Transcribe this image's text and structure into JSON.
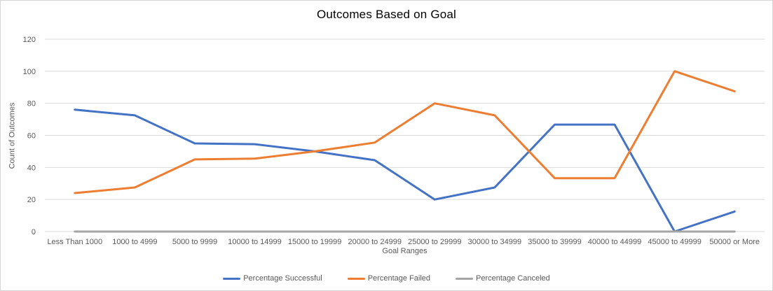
{
  "chart_data": {
    "type": "line",
    "title": "Outcomes Based on Goal",
    "xlabel": "Goal Ranges",
    "ylabel": "Count of Outcomes",
    "ylim": [
      0,
      120
    ],
    "yticks": [
      0,
      20,
      40,
      60,
      80,
      100,
      120
    ],
    "grid": true,
    "legend_position": "bottom",
    "categories": [
      "Less Than 1000",
      "1000 to 4999",
      "5000 to 9999",
      "10000 to 14999",
      "15000 to 19999",
      "20000 to 24999",
      "25000 to 29999",
      "30000 to 34999",
      "35000 to 39999",
      "40000 to 44999",
      "45000 to 49999",
      "50000 or More"
    ],
    "series": [
      {
        "name": "Percentage Successful",
        "color": "#4472C4",
        "values": [
          76,
          72.5,
          55,
          54.5,
          50,
          44.5,
          20,
          27.5,
          66.7,
          66.7,
          0,
          12.5
        ]
      },
      {
        "name": "Percentage Failed",
        "color": "#ED7D31",
        "values": [
          24,
          27.5,
          45,
          45.5,
          50,
          55.5,
          80,
          72.5,
          33.3,
          33.3,
          100,
          87.5
        ]
      },
      {
        "name": "Percentage Canceled",
        "color": "#A5A5A5",
        "values": [
          0,
          0,
          0,
          0,
          0,
          0,
          0,
          0,
          0,
          0,
          0,
          0
        ]
      }
    ],
    "colors": {
      "gridline": "#d9d9d9",
      "axis_text": "#595959",
      "title_text": "#000000"
    }
  }
}
